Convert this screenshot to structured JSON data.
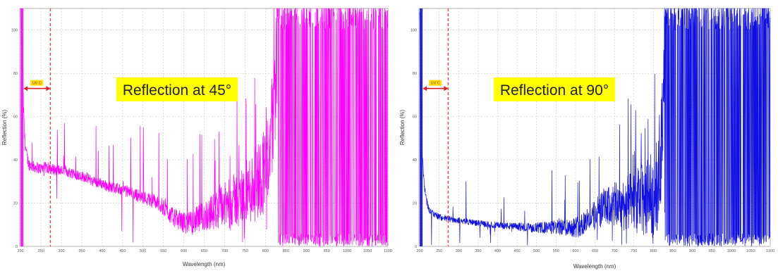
{
  "chart_data": [
    {
      "type": "line",
      "title": "",
      "annotation": "Reflection at 45°",
      "band_label": "UV C",
      "xlabel": "Wavelength (nm)",
      "ylabel": "Reflection (%)",
      "xlim": [
        198,
        1100
      ],
      "ylim": [
        0,
        110
      ],
      "x_ticks": [
        200,
        250,
        300,
        350,
        400,
        450,
        500,
        550,
        600,
        650,
        700,
        750,
        800,
        850,
        900,
        950,
        1000,
        1050,
        1100
      ],
      "y_ticks": [
        0,
        20,
        40,
        60,
        80,
        100
      ],
      "grid": true,
      "color": "#ff00ff",
      "marker_lines": [
        {
          "x": 273,
          "style": "dashed",
          "color": "#ff3b3b"
        }
      ],
      "band": {
        "x0": 200,
        "x1": 273,
        "y": 73,
        "color": "#e02020"
      },
      "series": [
        {
          "x": [
            200,
            203,
            206,
            210,
            215,
            220,
            230,
            240,
            250,
            260,
            270,
            280,
            290,
            300,
            310,
            320,
            330,
            340,
            350,
            360,
            370,
            380,
            390,
            400,
            410,
            420,
            430,
            440,
            450,
            460,
            470,
            480,
            490,
            500,
            510,
            520,
            530,
            540,
            550,
            560,
            570,
            580,
            590,
            600,
            610,
            620,
            630,
            640,
            650,
            660,
            670,
            680,
            690,
            700,
            710,
            720,
            730,
            740,
            750,
            760,
            770,
            780,
            790,
            800,
            810,
            820,
            830
          ],
          "values": [
            110,
            95,
            70,
            50,
            42,
            38,
            37,
            36.5,
            36,
            36.5,
            36,
            35.5,
            35.5,
            35,
            35,
            34,
            34,
            33,
            32.5,
            32,
            31,
            30,
            29.5,
            29,
            28,
            27.5,
            27,
            26.5,
            26,
            25.5,
            25,
            24,
            23.5,
            23,
            22,
            21.5,
            20.5,
            19.5,
            18,
            16,
            14,
            13,
            12,
            11,
            10.5,
            11,
            12,
            13,
            14,
            15,
            16,
            17,
            18,
            19,
            20,
            21,
            22,
            23,
            24,
            26,
            28,
            30,
            33,
            37,
            45,
            60,
            100
          ]
        }
      ]
    },
    {
      "type": "line",
      "title": "",
      "annotation": "Reflection at 90°",
      "band_label": "UV C",
      "xlabel": "Wavelength (nm)",
      "ylabel": "Reflection (%)",
      "xlim": [
        198,
        1100
      ],
      "ylim": [
        0,
        110
      ],
      "x_ticks": [
        200,
        250,
        300,
        350,
        400,
        450,
        500,
        550,
        600,
        650,
        700,
        750,
        800,
        850,
        900,
        950,
        1000,
        1050,
        1100
      ],
      "y_ticks": [
        0,
        20,
        40,
        60,
        80,
        100
      ],
      "grid": true,
      "color": "#1010e0",
      "marker_lines": [
        {
          "x": 273,
          "style": "dashed",
          "color": "#ff3b3b"
        }
      ],
      "band": {
        "x0": 200,
        "x1": 273,
        "y": 73,
        "color": "#e02020"
      },
      "series": [
        {
          "x": [
            200,
            203,
            206,
            210,
            214,
            218,
            222,
            228,
            235,
            245,
            260,
            280,
            300,
            320,
            340,
            360,
            380,
            400,
            420,
            440,
            460,
            480,
            500,
            520,
            540,
            560,
            580,
            600,
            620,
            640,
            660,
            680,
            700,
            720,
            740,
            760,
            780,
            800,
            810,
            820,
            830
          ],
          "values": [
            110,
            70,
            45,
            32,
            25,
            21,
            18,
            16,
            15,
            14,
            13,
            12.5,
            12,
            11.5,
            11,
            10.5,
            10,
            9.8,
            9.5,
            9.2,
            9,
            8.8,
            8.6,
            8.6,
            8.7,
            8.8,
            9,
            9,
            10,
            13,
            16,
            18,
            19,
            19.5,
            20,
            21,
            22,
            24,
            30,
            45,
            100
          ]
        }
      ]
    }
  ]
}
